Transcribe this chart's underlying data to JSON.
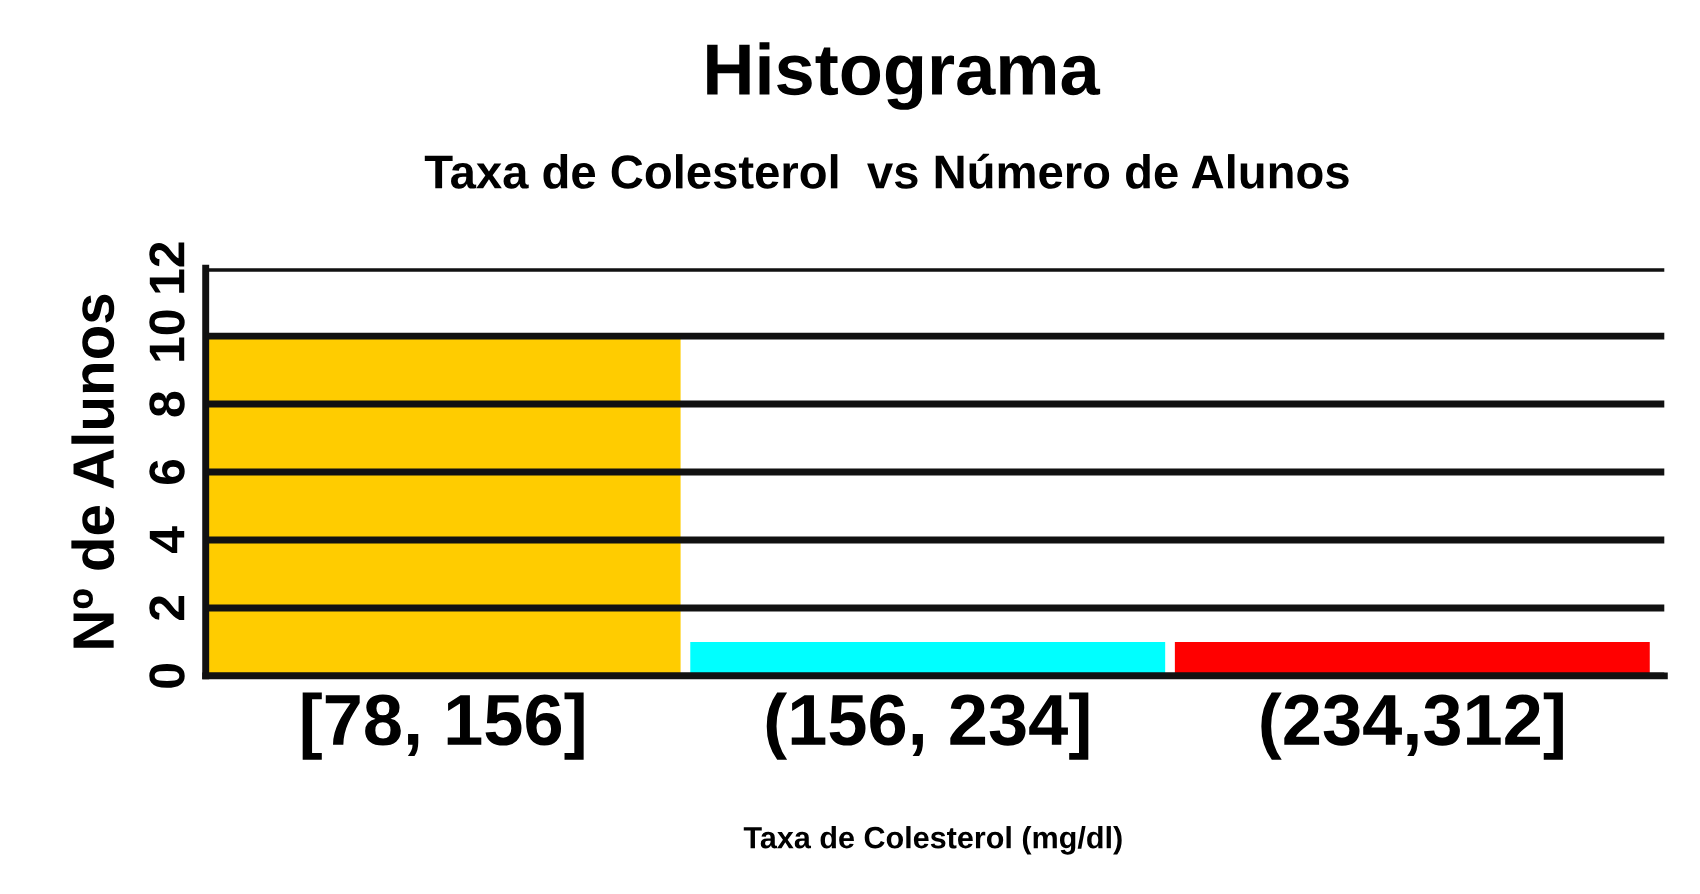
{
  "chart_data": {
    "type": "bar",
    "title": "Histograma",
    "subtitle": "Taxa de Colesterol  vs Número de Alunos",
    "xlabel": "Taxa de Colesterol (mg/dl)",
    "ylabel": "Nº de Alunos",
    "categories": [
      "[78, 156]",
      "(156, 234]",
      "(234,312]"
    ],
    "values": [
      10,
      1,
      1
    ],
    "colors": [
      "#ffcc00",
      "#00ffff",
      "#ff0000"
    ],
    "ylim": [
      0,
      12
    ],
    "yticks": [
      0,
      2,
      4,
      6,
      8,
      10,
      12
    ],
    "grid": "y"
  }
}
